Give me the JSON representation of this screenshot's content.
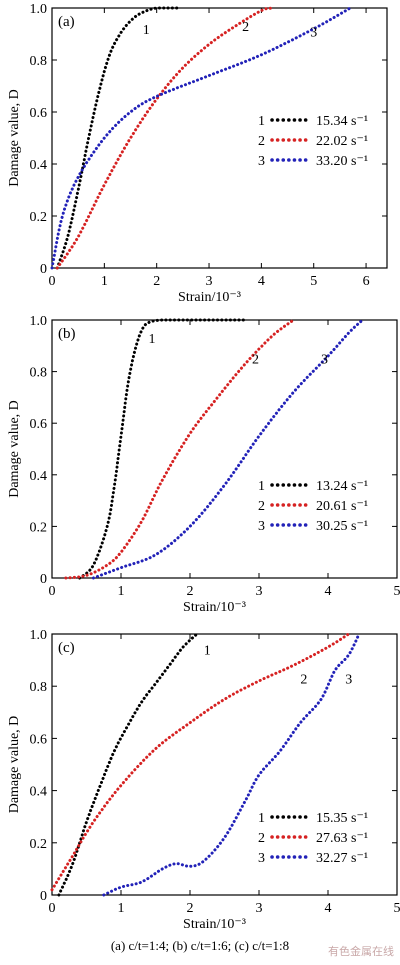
{
  "caption": "(a) c/t=1:4; (b) c/t=1:6; (c) c/t=1:8",
  "watermark": "有色金属在线",
  "chart_data": [
    {
      "type": "line",
      "panel_label": "(a)",
      "xlabel": "Strain/10⁻³",
      "ylabel": "Damage value, D",
      "xlim": [
        0,
        6.4
      ],
      "ylim": [
        0,
        1.0
      ],
      "xticks": [
        0,
        1,
        2,
        3,
        4,
        5,
        6
      ],
      "yticks": [
        0,
        0.2,
        0.4,
        0.6,
        0.8,
        1.0
      ],
      "legend_position": "center-right",
      "series": [
        {
          "label": "1",
          "rate": "15.34 s⁻¹",
          "color": "#000000",
          "x": [
            0.1,
            0.3,
            0.5,
            0.7,
            0.9,
            1.1,
            1.3,
            1.5,
            1.7,
            2.0,
            2.4
          ],
          "y": [
            0.0,
            0.12,
            0.3,
            0.5,
            0.68,
            0.82,
            0.9,
            0.95,
            0.98,
            1.0,
            1.0
          ]
        },
        {
          "label": "2",
          "rate": "22.02 s⁻¹",
          "color": "#d62222",
          "x": [
            0.1,
            0.5,
            1.0,
            1.5,
            2.0,
            2.5,
            3.0,
            3.5,
            4.0,
            4.2
          ],
          "y": [
            0.0,
            0.12,
            0.32,
            0.5,
            0.65,
            0.77,
            0.86,
            0.93,
            0.99,
            1.0
          ]
        },
        {
          "label": "3",
          "rate": "33.20 s⁻¹",
          "color": "#2222b8",
          "x": [
            0.0,
            0.2,
            0.5,
            1.0,
            1.5,
            2.0,
            3.0,
            4.0,
            5.0,
            5.7
          ],
          "y": [
            0.0,
            0.2,
            0.35,
            0.5,
            0.6,
            0.66,
            0.74,
            0.82,
            0.92,
            1.0
          ]
        }
      ],
      "curve_labels": [
        {
          "text": "1",
          "x": 1.8,
          "y": 0.92
        },
        {
          "text": "2",
          "x": 3.7,
          "y": 0.93
        },
        {
          "text": "3",
          "x": 5.0,
          "y": 0.91
        }
      ]
    },
    {
      "type": "line",
      "panel_label": "(b)",
      "xlabel": "Strain/10⁻³",
      "ylabel": "Damage value, D",
      "xlim": [
        0,
        5
      ],
      "ylim": [
        0,
        1.0
      ],
      "xticks": [
        0,
        1,
        2,
        3,
        4,
        5
      ],
      "yticks": [
        0,
        0.2,
        0.4,
        0.6,
        0.8,
        1.0
      ],
      "legend_position": "center-right",
      "series": [
        {
          "label": "1",
          "rate": "13.24 s⁻¹",
          "color": "#000000",
          "x": [
            0.4,
            0.6,
            0.8,
            0.9,
            1.0,
            1.1,
            1.2,
            1.3,
            1.4,
            1.6,
            2.0,
            2.8
          ],
          "y": [
            0.0,
            0.05,
            0.2,
            0.35,
            0.55,
            0.75,
            0.88,
            0.96,
            0.99,
            1.0,
            1.0,
            1.0
          ]
        },
        {
          "label": "2",
          "rate": "20.61 s⁻¹",
          "color": "#d62222",
          "x": [
            0.2,
            0.5,
            0.8,
            1.0,
            1.3,
            1.6,
            2.0,
            2.4,
            2.8,
            3.2,
            3.5
          ],
          "y": [
            0.0,
            0.01,
            0.05,
            0.1,
            0.22,
            0.38,
            0.56,
            0.7,
            0.83,
            0.94,
            1.0
          ]
        },
        {
          "label": "3",
          "rate": "30.25 s⁻¹",
          "color": "#2222b8",
          "x": [
            0.6,
            1.0,
            1.5,
            2.0,
            2.5,
            3.0,
            3.5,
            4.0,
            4.3,
            4.5
          ],
          "y": [
            0.0,
            0.04,
            0.09,
            0.2,
            0.36,
            0.55,
            0.72,
            0.86,
            0.95,
            1.0
          ]
        }
      ],
      "curve_labels": [
        {
          "text": "1",
          "x": 1.45,
          "y": 0.93
        },
        {
          "text": "2",
          "x": 2.95,
          "y": 0.85
        },
        {
          "text": "3",
          "x": 3.95,
          "y": 0.85
        }
      ]
    },
    {
      "type": "line",
      "panel_label": "(c)",
      "xlabel": "Strain/10⁻³",
      "ylabel": "Damage value, D",
      "xlim": [
        0,
        5
      ],
      "ylim": [
        0,
        1.0
      ],
      "xticks": [
        0,
        1,
        2,
        3,
        4,
        5
      ],
      "yticks": [
        0,
        0.2,
        0.4,
        0.6,
        0.8,
        1.0
      ],
      "legend_position": "bottom-right",
      "series": [
        {
          "label": "1",
          "rate": "15.35 s⁻¹",
          "color": "#000000",
          "x": [
            0.1,
            0.3,
            0.5,
            0.7,
            0.9,
            1.1,
            1.3,
            1.5,
            1.7,
            1.9,
            2.1
          ],
          "y": [
            0.0,
            0.12,
            0.28,
            0.42,
            0.55,
            0.65,
            0.74,
            0.81,
            0.88,
            0.95,
            1.0
          ]
        },
        {
          "label": "2",
          "rate": "27.63 s⁻¹",
          "color": "#d62222",
          "x": [
            0.0,
            0.3,
            0.6,
            1.0,
            1.5,
            2.0,
            2.5,
            3.0,
            3.5,
            4.0,
            4.3
          ],
          "y": [
            0.02,
            0.15,
            0.28,
            0.42,
            0.56,
            0.66,
            0.75,
            0.82,
            0.88,
            0.95,
            1.0
          ]
        },
        {
          "label": "3",
          "rate": "32.27 s⁻¹",
          "color": "#2222b8",
          "x": [
            0.75,
            1.0,
            1.3,
            1.6,
            1.8,
            2.0,
            2.2,
            2.5,
            2.8,
            3.0,
            3.3,
            3.6,
            3.9,
            4.1,
            4.3,
            4.45
          ],
          "y": [
            0.0,
            0.03,
            0.05,
            0.1,
            0.12,
            0.11,
            0.13,
            0.22,
            0.36,
            0.46,
            0.55,
            0.66,
            0.75,
            0.86,
            0.92,
            1.0
          ]
        }
      ],
      "curve_labels": [
        {
          "text": "1",
          "x": 2.25,
          "y": 0.94
        },
        {
          "text": "2",
          "x": 3.65,
          "y": 0.83
        },
        {
          "text": "3",
          "x": 4.3,
          "y": 0.83
        }
      ]
    }
  ]
}
